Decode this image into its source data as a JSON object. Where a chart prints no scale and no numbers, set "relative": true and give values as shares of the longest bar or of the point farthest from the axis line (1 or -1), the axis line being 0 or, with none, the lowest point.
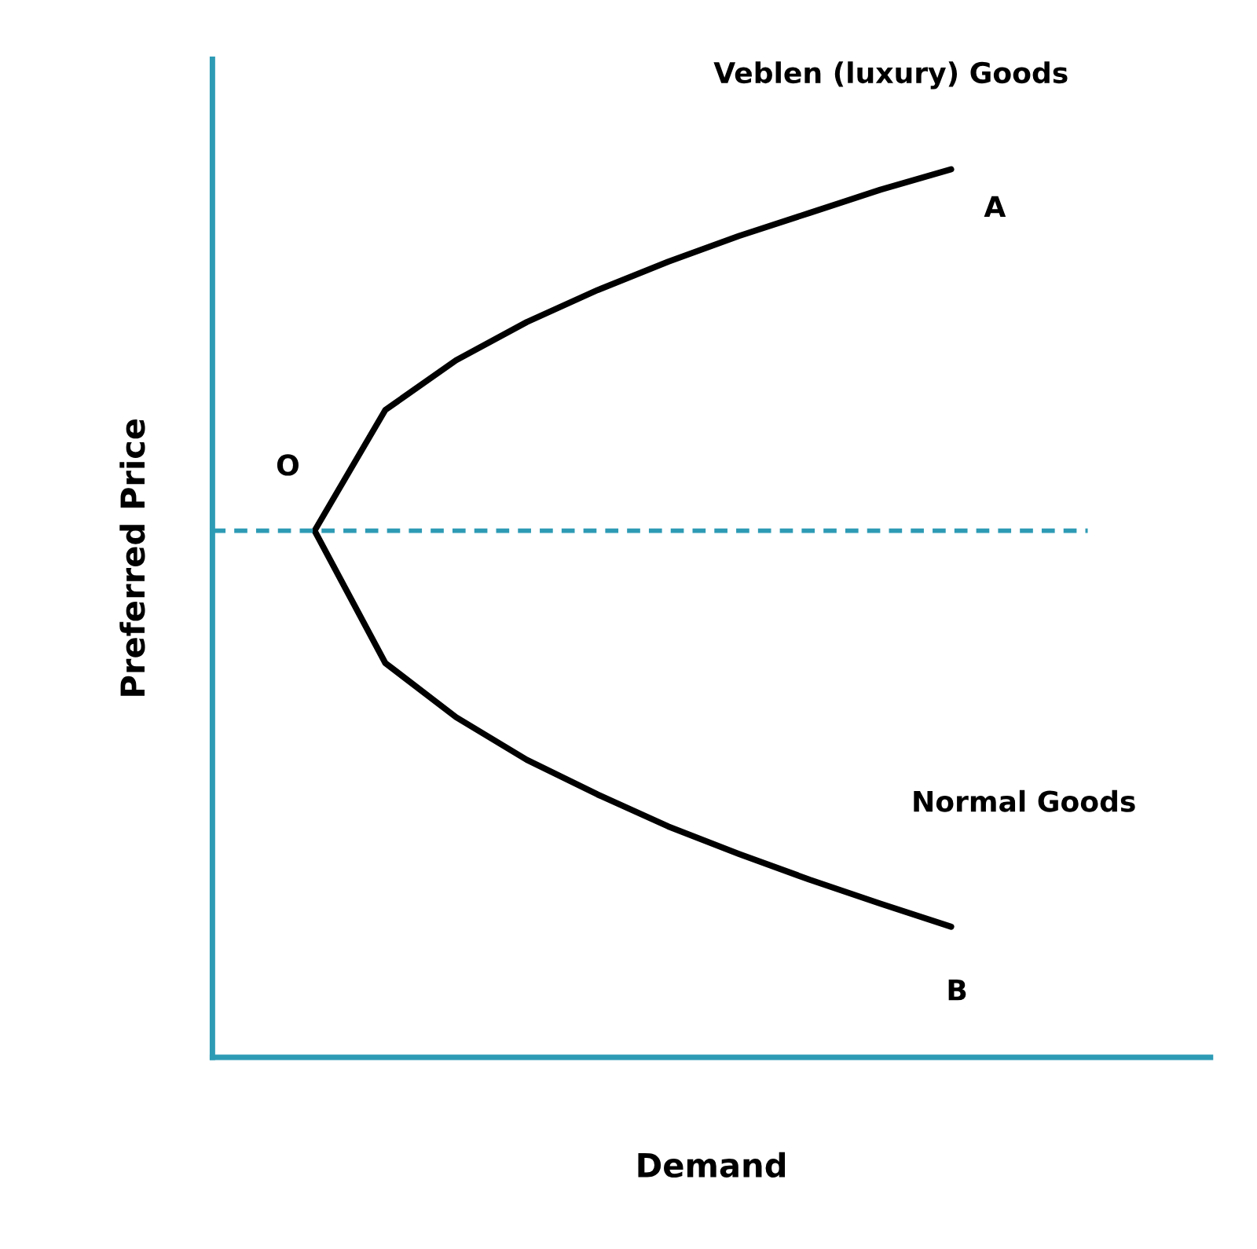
{
  "chart_data": {
    "type": "line",
    "relative": true,
    "xlabel": "Demand",
    "ylabel": "Preferred Price",
    "categories": [
      null,
      null,
      null,
      null,
      null,
      null,
      null,
      null,
      null,
      null
    ],
    "series": [
      {
        "color": "#000000",
        "values": [
          0.593,
          0.729,
          0.785,
          0.828,
          0.864,
          0.896,
          0.925,
          0.951,
          0.977,
          1.0
        ]
      },
      {
        "color": "#000000",
        "values": [
          0.593,
          0.444,
          0.383,
          0.335,
          0.296,
          0.26,
          0.229,
          0.2,
          0.173,
          0.147
        ]
      }
    ],
    "ref_lines": [
      {
        "axis": "y",
        "value": 0.593,
        "color": "#2e9bb5",
        "line_style": "dashed"
      }
    ],
    "annotations": [
      "Veblen (luxury) Goods",
      "A",
      "O",
      "Normal Goods",
      "B"
    ],
    "legend": false,
    "marker": "none",
    "line_style": "solid"
  }
}
